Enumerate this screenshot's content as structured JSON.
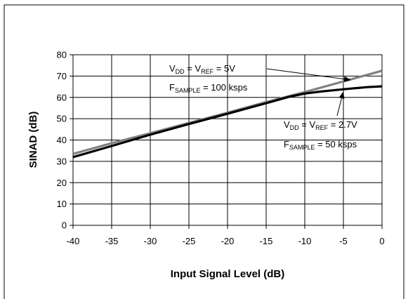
{
  "chart_data": {
    "type": "line",
    "xlabel": "Input Signal Level (dB)",
    "ylabel": "SINAD (dB)",
    "xlim": [
      -40,
      0
    ],
    "ylim": [
      0,
      80
    ],
    "xticks": [
      "-40",
      "-35",
      "-30",
      "-25",
      "-20",
      "-15",
      "-10",
      "-5",
      "0"
    ],
    "yticks": [
      "0",
      "10",
      "20",
      "30",
      "40",
      "50",
      "60",
      "70",
      "80"
    ],
    "grid": true,
    "series": [
      {
        "color": "#808080",
        "x": [
          -40,
          -35,
          -30,
          -25,
          -20,
          -15,
          -10,
          -5,
          0
        ],
        "y": [
          33.5,
          38.5,
          43.2,
          48.0,
          52.8,
          57.8,
          62.5,
          67.5,
          72.5
        ]
      },
      {
        "color": "#000000",
        "x": [
          -40,
          -35,
          -30,
          -25,
          -20,
          -15,
          -12,
          -10,
          -8,
          -5,
          -2,
          0
        ],
        "y": [
          32.0,
          37.2,
          42.5,
          47.5,
          52.3,
          57.3,
          60.3,
          61.8,
          62.7,
          63.8,
          64.8,
          65.2
        ]
      }
    ],
    "annotations": [
      {
        "line1": {
          "a": "V",
          "a_sub": "DD",
          "b": " = V",
          "b_sub": "REF",
          "c": " = 5V"
        },
        "line2": {
          "a": "F",
          "a_sub": "SAMPLE",
          "b": " = 100 ksps"
        },
        "arrow_to": [
          -4,
          67.5
        ]
      },
      {
        "line1": {
          "a": "V",
          "a_sub": "DD",
          "b": " = V",
          "b_sub": "REF",
          "c": " = 2.7V"
        },
        "line2": {
          "a": "F",
          "a_sub": "SAMPLE",
          "b": " = 50 ksps"
        },
        "arrow_to": [
          -5,
          63.8
        ]
      }
    ]
  }
}
